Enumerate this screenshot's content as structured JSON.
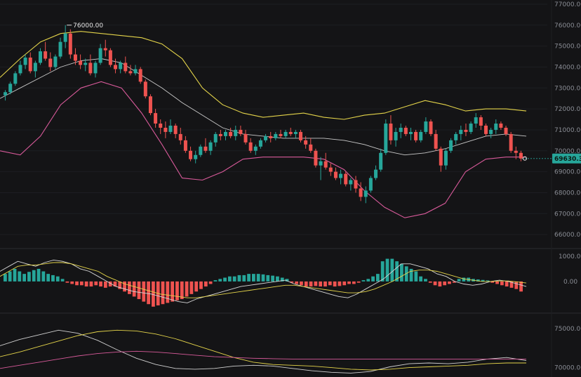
{
  "chart_data": {
    "type": "candlestick",
    "colors": {
      "up": "#26a69a",
      "down": "#ef5350",
      "boll_upper": "#e4d44a",
      "boll_mid": "#c9c9c9",
      "boll_lower": "#d85a9a",
      "macd_dif": "#d8d8d8",
      "macd_dea": "#e4d44a"
    },
    "main_pane": {
      "y_ticks": [
        "77000.00",
        "76000.00",
        "75000.00",
        "74000.00",
        "73000.00",
        "72000.00",
        "71000.00",
        "70000.00",
        "69000.00",
        "68000.00",
        "67000.00",
        "66000.00"
      ],
      "ylim": [
        65400,
        77200
      ],
      "last_price": "69630.33",
      "high_marker": "76000.00",
      "candles": [
        [
          72650,
          72900,
          72400,
          72800
        ],
        [
          72800,
          73300,
          72700,
          73200
        ],
        [
          73200,
          73800,
          73100,
          73700
        ],
        [
          73700,
          74300,
          73600,
          74100
        ],
        [
          74100,
          74600,
          73900,
          74450
        ],
        [
          74450,
          74700,
          73700,
          73800
        ],
        [
          73800,
          74300,
          73500,
          74200
        ],
        [
          74200,
          74900,
          74100,
          74750
        ],
        [
          74750,
          75200,
          74300,
          74400
        ],
        [
          74400,
          74700,
          73800,
          74000
        ],
        [
          74000,
          74600,
          73900,
          74500
        ],
        [
          74500,
          75400,
          74400,
          75200
        ],
        [
          75200,
          76000,
          74900,
          75600
        ],
        [
          75600,
          75800,
          74400,
          74600
        ],
        [
          74600,
          74900,
          74100,
          74300
        ],
        [
          74300,
          74600,
          73900,
          74100
        ],
        [
          74100,
          74400,
          73800,
          74200
        ],
        [
          74200,
          74600,
          73600,
          73700
        ],
        [
          73700,
          74300,
          73500,
          74200
        ],
        [
          74200,
          75100,
          74100,
          74900
        ],
        [
          74900,
          75300,
          74500,
          74800
        ],
        [
          74800,
          74900,
          74000,
          74100
        ],
        [
          74100,
          74400,
          73700,
          73900
        ],
        [
          73900,
          74300,
          73700,
          74200
        ],
        [
          74200,
          74500,
          73700,
          73800
        ],
        [
          73800,
          74100,
          73600,
          73700
        ],
        [
          73700,
          74100,
          73600,
          73900
        ],
        [
          73900,
          74000,
          73200,
          73300
        ],
        [
          73300,
          73400,
          72500,
          72600
        ],
        [
          72600,
          72700,
          71700,
          71800
        ],
        [
          71800,
          72000,
          71100,
          71300
        ],
        [
          71300,
          71500,
          70800,
          71100
        ],
        [
          71100,
          71400,
          70600,
          70900
        ],
        [
          70900,
          71500,
          70800,
          71200
        ],
        [
          71200,
          71300,
          70600,
          70800
        ],
        [
          70800,
          71100,
          70300,
          70500
        ],
        [
          70500,
          70700,
          69900,
          70000
        ],
        [
          70000,
          70200,
          69500,
          69600
        ],
        [
          69600,
          70000,
          69400,
          69800
        ],
        [
          69800,
          70300,
          69700,
          70200
        ],
        [
          70200,
          70600,
          69900,
          70000
        ],
        [
          70000,
          70500,
          69800,
          70400
        ],
        [
          70400,
          70900,
          70200,
          70800
        ],
        [
          70800,
          71000,
          70500,
          70700
        ],
        [
          70700,
          71000,
          70500,
          70900
        ],
        [
          70900,
          71100,
          70600,
          70700
        ],
        [
          70700,
          71200,
          70500,
          71000
        ],
        [
          71000,
          71200,
          70700,
          70800
        ],
        [
          70800,
          71000,
          70300,
          70400
        ],
        [
          70400,
          70600,
          69900,
          70000
        ],
        [
          70000,
          70300,
          69800,
          70200
        ],
        [
          70200,
          70600,
          70100,
          70500
        ],
        [
          70500,
          70800,
          70400,
          70700
        ],
        [
          70700,
          70900,
          70400,
          70600
        ],
        [
          70600,
          70900,
          70500,
          70800
        ],
        [
          70800,
          71000,
          70600,
          70700
        ],
        [
          70700,
          71000,
          70600,
          70900
        ],
        [
          70900,
          71100,
          70700,
          70800
        ],
        [
          70800,
          71000,
          70600,
          70900
        ],
        [
          70900,
          71000,
          70400,
          70500
        ],
        [
          70500,
          70700,
          70100,
          70300
        ],
        [
          70300,
          70600,
          69900,
          70000
        ],
        [
          70000,
          70100,
          69200,
          69300
        ],
        [
          69300,
          69700,
          68600,
          69500
        ],
        [
          69500,
          69900,
          69100,
          69200
        ],
        [
          69200,
          69400,
          68800,
          69000
        ],
        [
          69000,
          69200,
          68600,
          68700
        ],
        [
          68700,
          69100,
          68400,
          68900
        ],
        [
          68900,
          69000,
          68300,
          68400
        ],
        [
          68400,
          68700,
          68100,
          68600
        ],
        [
          68600,
          68800,
          68000,
          68200
        ],
        [
          68200,
          68500,
          67600,
          67800
        ],
        [
          67800,
          68300,
          67500,
          68100
        ],
        [
          68100,
          68800,
          68000,
          68700
        ],
        [
          68700,
          69300,
          68600,
          69100
        ],
        [
          69100,
          70100,
          69000,
          69900
        ],
        [
          69900,
          71500,
          69800,
          71300
        ],
        [
          71300,
          71700,
          70300,
          70500
        ],
        [
          70500,
          71100,
          70200,
          70900
        ],
        [
          70900,
          71300,
          70600,
          71100
        ],
        [
          71100,
          71200,
          70700,
          70800
        ],
        [
          70800,
          71100,
          70500,
          70900
        ],
        [
          70900,
          71000,
          70400,
          70500
        ],
        [
          70500,
          71000,
          70400,
          70900
        ],
        [
          70900,
          71600,
          70800,
          71400
        ],
        [
          71400,
          71500,
          70700,
          70800
        ],
        [
          70800,
          71000,
          70000,
          70100
        ],
        [
          70100,
          70200,
          69000,
          69300
        ],
        [
          69300,
          70100,
          69100,
          70000
        ],
        [
          70000,
          70600,
          69900,
          70500
        ],
        [
          70500,
          70900,
          70300,
          70800
        ],
        [
          70800,
          71200,
          70500,
          71000
        ],
        [
          71000,
          71300,
          70700,
          70900
        ],
        [
          70900,
          71400,
          70800,
          71300
        ],
        [
          71300,
          71800,
          71100,
          71600
        ],
        [
          71600,
          71700,
          71000,
          71200
        ],
        [
          71200,
          71300,
          70700,
          70800
        ],
        [
          70800,
          71100,
          70600,
          71000
        ],
        [
          71000,
          71500,
          70800,
          71300
        ],
        [
          71300,
          71400,
          71000,
          71100
        ],
        [
          71100,
          71200,
          70700,
          70800
        ],
        [
          70800,
          70900,
          69900,
          70000
        ],
        [
          70000,
          70200,
          69600,
          69900
        ],
        [
          69900,
          70000,
          69500,
          69630.33
        ]
      ],
      "boll_upper": [
        73500,
        74400,
        75200,
        75600,
        75700,
        75600,
        75500,
        75400,
        75100,
        74400,
        73000,
        72200,
        71800,
        71600,
        71700,
        71800,
        71600,
        71500,
        71700,
        71800,
        72100,
        72400,
        72200,
        71900,
        72000,
        72000,
        71900
      ],
      "boll_mid": [
        72500,
        73000,
        73500,
        74000,
        74300,
        74400,
        74200,
        73600,
        73000,
        72300,
        71700,
        71100,
        70800,
        70700,
        70600,
        70600,
        70600,
        70500,
        70300,
        70000,
        69800,
        69900,
        70100,
        70400,
        70700,
        70800,
        70700
      ],
      "boll_lower": [
        70000,
        69800,
        70700,
        72200,
        73000,
        73300,
        73000,
        71800,
        70300,
        68700,
        68600,
        69000,
        69600,
        69700,
        69700,
        69700,
        69600,
        69100,
        68100,
        67300,
        66800,
        67000,
        67500,
        69000,
        69600,
        69700,
        69700
      ]
    },
    "macd_pane": {
      "y_ticks": [
        "1000.00",
        "0.00"
      ],
      "ylim": [
        -1200,
        1250
      ],
      "hist": [
        300,
        400,
        500,
        400,
        300,
        380,
        450,
        500,
        400,
        300,
        250,
        200,
        100,
        -50,
        -100,
        -150,
        -150,
        -200,
        -200,
        -150,
        -200,
        -250,
        -200,
        -200,
        -300,
        -400,
        -500,
        -600,
        -700,
        -800,
        -900,
        -1000,
        -950,
        -900,
        -850,
        -800,
        -750,
        -700,
        -600,
        -500,
        -400,
        -300,
        -200,
        -100,
        50,
        100,
        150,
        200,
        200,
        250,
        250,
        300,
        300,
        300,
        280,
        250,
        230,
        200,
        150,
        100,
        -50,
        -100,
        -150,
        -200,
        -200,
        -180,
        -200,
        -200,
        -150,
        -200,
        -180,
        -150,
        -100,
        -100,
        -50,
        50,
        100,
        200,
        300,
        800,
        900,
        900,
        800,
        700,
        600,
        500,
        400,
        200,
        100,
        -50,
        -150,
        -200,
        -150,
        -100,
        -50,
        100,
        150,
        150,
        100,
        80,
        60,
        40,
        -50,
        -100,
        -150,
        -200,
        -250,
        -300,
        -400
      ],
      "dif": [
        400,
        600,
        800,
        700,
        600,
        750,
        850,
        800,
        700,
        500,
        400,
        200,
        0,
        -200,
        -300,
        -400,
        -450,
        -500,
        -600,
        -700,
        -800,
        -850,
        -700,
        -600,
        -500,
        -400,
        -300,
        -200,
        -150,
        -100,
        -50,
        0,
        50,
        -100,
        -200,
        -300,
        -400,
        -500,
        -600,
        -650,
        -500,
        -300,
        -100,
        100,
        400,
        700,
        700,
        600,
        500,
        300,
        200,
        0,
        -100,
        -150,
        -100,
        0,
        50,
        0,
        -100,
        -200
      ],
      "dea": [
        200,
        400,
        600,
        650,
        650,
        700,
        750,
        750,
        700,
        600,
        500,
        400,
        200,
        50,
        -100,
        -200,
        -300,
        -400,
        -500,
        -550,
        -600,
        -650,
        -650,
        -600,
        -550,
        -500,
        -450,
        -400,
        -350,
        -300,
        -250,
        -200,
        -150,
        -150,
        -200,
        -250,
        -300,
        -350,
        -400,
        -450,
        -450,
        -400,
        -300,
        -150,
        0,
        200,
        400,
        450,
        450,
        400,
        300,
        200,
        100,
        50,
        0,
        0,
        20,
        20,
        -20,
        -60
      ]
    },
    "lower_pane": {
      "y_ticks": [
        "75000.00",
        "70000.00"
      ],
      "ylim": [
        68800,
        76800
      ],
      "white": [
        72800,
        73600,
        74200,
        74800,
        74400,
        73500,
        72300,
        71200,
        70400,
        69900,
        69800,
        69900,
        70200,
        70300,
        70200,
        69900,
        69600,
        69400,
        69300,
        69500,
        70100,
        70500,
        70600,
        70500,
        70700,
        71100,
        71300,
        70900
      ],
      "yellow": [
        71400,
        72000,
        72700,
        73400,
        74100,
        74600,
        74800,
        74700,
        74300,
        73700,
        72900,
        72100,
        71300,
        70700,
        70400,
        70300,
        70200,
        70000,
        69800,
        69700,
        69800,
        70000,
        70100,
        70200,
        70300,
        70500,
        70600,
        70600
      ],
      "pink": [
        69900,
        70300,
        70700,
        71100,
        71500,
        71800,
        72000,
        72100,
        72000,
        71800,
        71600,
        71400,
        71300,
        71200,
        71150,
        71100,
        71100,
        71100,
        71100,
        71100,
        71100,
        71100,
        71100,
        71100,
        71100,
        71100,
        71100,
        71100
      ]
    }
  }
}
